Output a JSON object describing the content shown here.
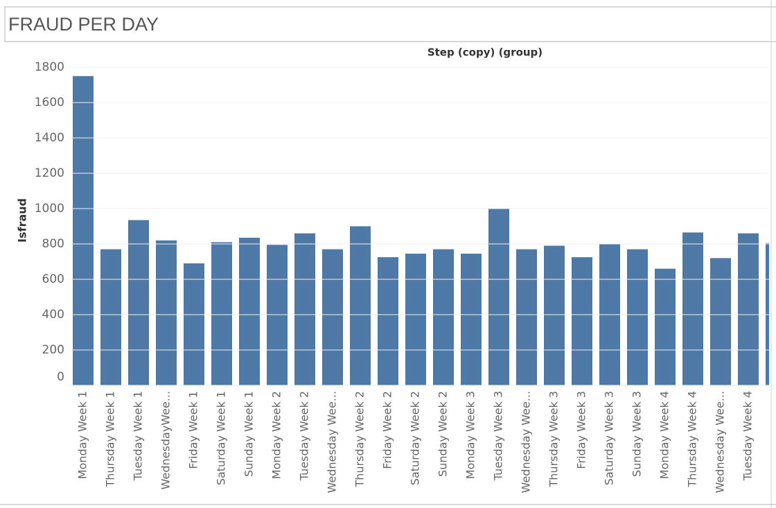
{
  "chart_data": {
    "type": "bar",
    "title": "FRAUD PER DAY",
    "header": "Step (copy) (group)",
    "y_label": "Isfraud",
    "categories": [
      "Monday Week 1",
      "Thursday Week 1",
      "Tuesday Week 1",
      "WednesdayWee...",
      "Friday Week 1",
      "Saturday Week 1",
      "Sunday Week 1",
      "Monday Week 2",
      "Tuesday Week 2",
      "Wednesday Wee...",
      "Thursday Week 2",
      "Friday Week 2",
      "Saturday Week 2",
      "Sunday Week 2",
      "Monday Week 3",
      "Tuesday Week 3",
      "Wednesday Wee...",
      "Thursday Week 3",
      "Friday Week 3",
      "Saturday Week 3",
      "Sunday Week 3",
      "Monday Week 4",
      "Thursday Week 4",
      "Wednesday Wee...",
      "Tuesday Week 4",
      null
    ],
    "values": [
      1750,
      770,
      935,
      820,
      690,
      810,
      835,
      795,
      860,
      770,
      900,
      725,
      745,
      770,
      745,
      1000,
      770,
      790,
      725,
      800,
      770,
      660,
      865,
      720,
      860,
      805
    ],
    "color": "#4e79a7",
    "ylim": [
      0,
      1800
    ],
    "yticks": [
      0,
      200,
      400,
      600,
      800,
      1000,
      1200,
      1400,
      1600,
      1800
    ],
    "grid": true
  }
}
